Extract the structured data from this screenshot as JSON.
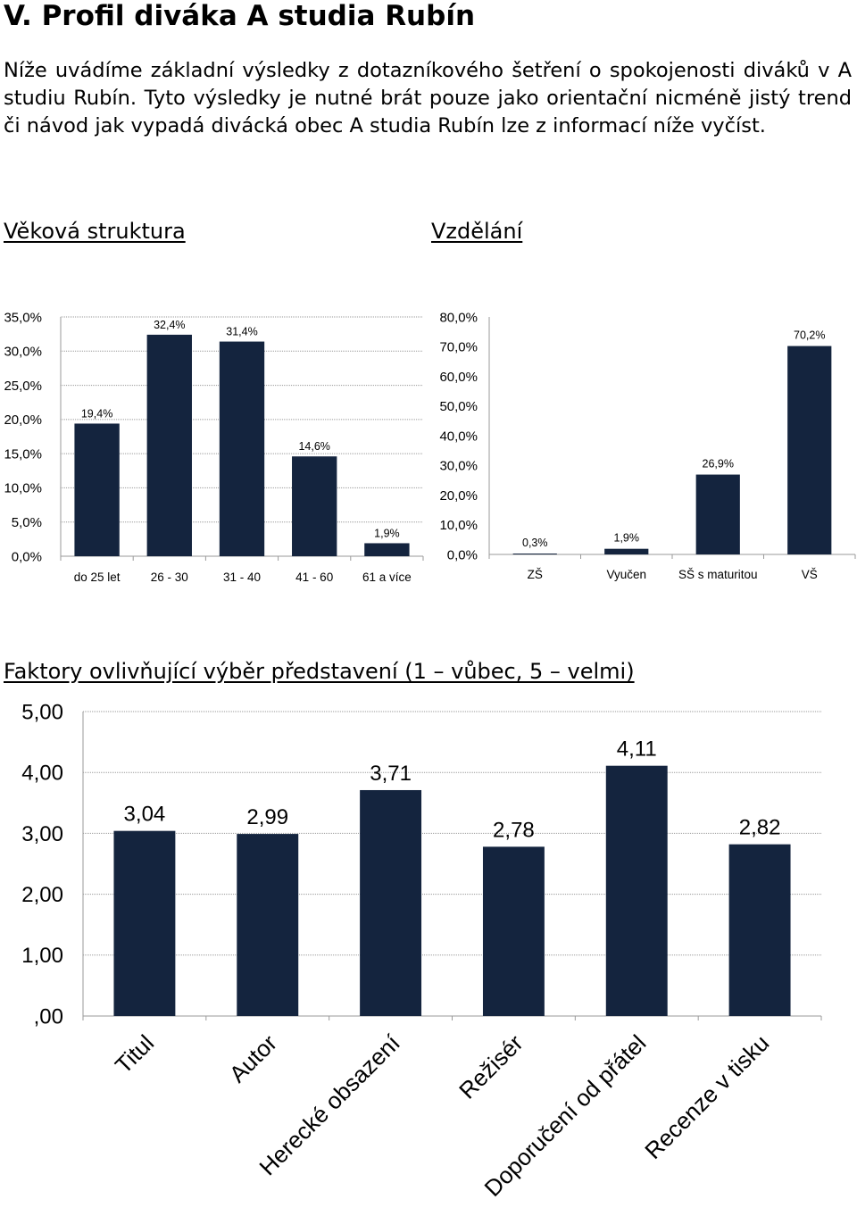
{
  "heading": "V.  Profil diváka A studia Rubín",
  "intro": "Níže uvádíme základní výsledky z dotazníkového šetření o spokojenosti diváků v A studiu Rubín. Tyto výsledky je nutné brát pouze jako orientační nicméně jistý trend či návod jak vypadá divácká obec A studia Rubín lze z informací níže vyčíst.",
  "section_age": "Věková struktura",
  "section_education": "Vzdělání",
  "section_factors": "Faktory ovlivňující výběr představení (1 – vůbec, 5 – velmi)",
  "colors": {
    "bar": "#14243e",
    "grid": "#9a9a9a"
  },
  "chart_data": [
    {
      "id": "age",
      "type": "bar",
      "title": "Věková struktura",
      "categories": [
        "do 25 let",
        "26 - 30",
        "31 - 40",
        "41 - 60",
        "61 a více"
      ],
      "values": [
        19.4,
        32.4,
        31.4,
        14.6,
        1.9
      ],
      "value_labels": [
        "19,4%",
        "32,4%",
        "31,4%",
        "14,6%",
        "1,9%"
      ],
      "ylim": [
        0,
        35
      ],
      "yticks": [
        "0,0%",
        "5,0%",
        "10,0%",
        "15,0%",
        "20,0%",
        "25,0%",
        "30,0%",
        "35,0%"
      ],
      "grid": true
    },
    {
      "id": "education",
      "type": "bar",
      "title": "Vzdělání",
      "categories": [
        "ZŠ",
        "Vyučen",
        "SŠ s maturitou",
        "VŠ"
      ],
      "values": [
        0.3,
        1.9,
        26.9,
        70.2
      ],
      "value_labels": [
        "0,3%",
        "1,9%",
        "26,9%",
        "70,2%"
      ],
      "ylim": [
        0,
        80
      ],
      "yticks": [
        "0,0%",
        "10,0%",
        "20,0%",
        "30,0%",
        "40,0%",
        "50,0%",
        "60,0%",
        "70,0%",
        "80,0%"
      ],
      "grid": false
    },
    {
      "id": "factors",
      "type": "bar",
      "title": "Faktory ovlivňující výběr představení (1 – vůbec, 5 – velmi)",
      "categories": [
        "Titul",
        "Autor",
        "Herecké obsazení",
        "Režisér",
        "Doporučení od přátel",
        "Recenze v tisku"
      ],
      "values": [
        3.04,
        2.99,
        3.71,
        2.78,
        4.11,
        2.82
      ],
      "value_labels": [
        "3,04",
        "2,99",
        "3,71",
        "2,78",
        "4,11",
        "2,82"
      ],
      "ylim": [
        0,
        5
      ],
      "yticks": [
        ",00",
        "1,00",
        "2,00",
        "3,00",
        "4,00",
        "5,00"
      ],
      "grid": true
    }
  ]
}
